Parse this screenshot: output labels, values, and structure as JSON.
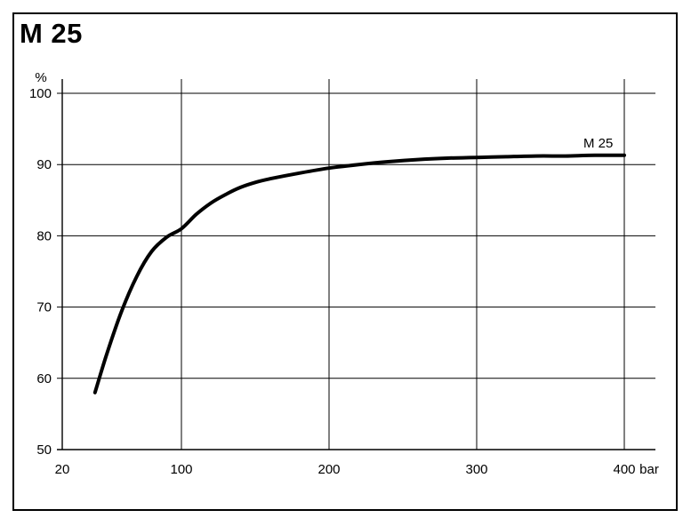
{
  "chart_data": {
    "type": "line",
    "title": "M 25",
    "ylabel": "%",
    "xlabel": "bar",
    "xlim": [
      20,
      400
    ],
    "ylim": [
      50,
      100
    ],
    "x_ticks": [
      20,
      100,
      200,
      300,
      400
    ],
    "x_tick_labels": [
      "20",
      "100",
      "200",
      "300",
      "400"
    ],
    "y_ticks": [
      50,
      60,
      70,
      80,
      90,
      100
    ],
    "y_tick_labels": [
      "50",
      "60",
      "70",
      "80",
      "90",
      "100"
    ],
    "grid": true,
    "series": [
      {
        "name": "M 25",
        "x": [
          42,
          50,
          60,
          70,
          80,
          90,
          100,
          110,
          120,
          130,
          140,
          150,
          160,
          180,
          200,
          220,
          240,
          260,
          280,
          300,
          320,
          340,
          360,
          380,
          400
        ],
        "y": [
          58.0,
          63.5,
          69.5,
          74.3,
          77.8,
          79.8,
          81.0,
          83.0,
          84.6,
          85.8,
          86.8,
          87.5,
          88.0,
          88.8,
          89.5,
          90.0,
          90.4,
          90.7,
          90.9,
          91.0,
          91.1,
          91.2,
          91.2,
          91.3,
          91.3
        ]
      }
    ],
    "colors": {
      "line": "#000000",
      "grid": "#000000",
      "axis": "#000000"
    }
  }
}
